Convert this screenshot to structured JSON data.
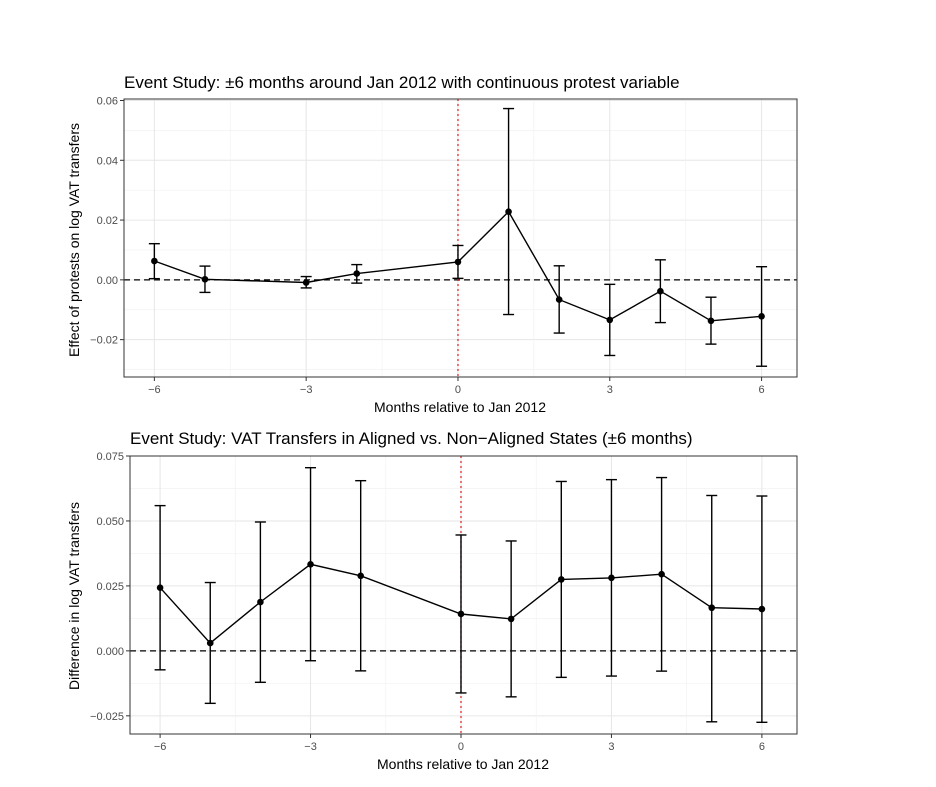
{
  "chart_data": [
    {
      "type": "line",
      "title": "Event Study: ±6 months around Jan 2012 with continuous protest variable",
      "xlabel": "Months relative to Jan 2012",
      "ylabel": "Effect of protests on log VAT transfers",
      "xlim": [
        -6.6,
        6.7
      ],
      "ylim": [
        -0.0325,
        0.0605
      ],
      "x_ticks": [
        -6,
        -3,
        0,
        3,
        6
      ],
      "x_tick_labels": [
        "−6",
        "−3",
        "0",
        "3",
        "6"
      ],
      "y_ticks": [
        -0.02,
        0.0,
        0.02,
        0.04,
        0.06
      ],
      "y_tick_labels": [
        "−0.02",
        "0.00",
        "0.02",
        "0.04",
        "0.06"
      ],
      "grid": true,
      "reference_hline": 0,
      "reference_vline": 0,
      "series": [
        {
          "x": [
            -6,
            -5,
            -3,
            -2,
            0,
            1,
            2,
            3,
            4,
            5,
            6
          ],
          "y": [
            0.0063,
            0.0002,
            -0.0009,
            0.0021,
            0.006,
            0.0228,
            -0.0066,
            -0.0134,
            -0.0038,
            -0.0137,
            -0.0122
          ],
          "ci_low": [
            0.0004,
            -0.0042,
            -0.0027,
            -0.0011,
            0.0005,
            -0.0116,
            -0.0178,
            -0.0253,
            -0.0143,
            -0.0215,
            -0.0289
          ],
          "ci_high": [
            0.0121,
            0.0046,
            0.0011,
            0.0051,
            0.0115,
            0.0573,
            0.0047,
            -0.0015,
            0.0067,
            -0.0058,
            0.0044
          ]
        }
      ]
    },
    {
      "type": "line",
      "title": "Event Study: VAT Transfers in Aligned vs. Non−Aligned States (±6 months)",
      "xlabel": "Months relative to Jan 2012",
      "ylabel": "Difference in log VAT transfers",
      "xlim": [
        -6.6,
        6.7
      ],
      "ylim": [
        -0.032,
        0.075
      ],
      "x_ticks": [
        -6,
        -3,
        0,
        3,
        6
      ],
      "x_tick_labels": [
        "−6",
        "−3",
        "0",
        "3",
        "6"
      ],
      "y_ticks": [
        -0.025,
        0.0,
        0.025,
        0.05,
        0.075
      ],
      "y_tick_labels": [
        "−0.025",
        "0.000",
        "0.025",
        "0.050",
        "0.075"
      ],
      "grid": true,
      "reference_hline": 0,
      "reference_vline": 0,
      "series": [
        {
          "x": [
            -6,
            -5,
            -4,
            -3,
            -2,
            0,
            1,
            2,
            3,
            4,
            5,
            6
          ],
          "y": [
            0.0243,
            0.003,
            0.0188,
            0.0333,
            0.0289,
            0.0142,
            0.0123,
            0.0275,
            0.0281,
            0.0295,
            0.0166,
            0.0161
          ],
          "ci_low": [
            -0.0073,
            -0.0202,
            -0.0121,
            -0.0038,
            -0.0077,
            -0.0162,
            -0.0177,
            -0.0102,
            -0.0097,
            -0.0078,
            -0.0273,
            -0.0275
          ],
          "ci_high": [
            0.0559,
            0.0263,
            0.0496,
            0.0705,
            0.0655,
            0.0446,
            0.0423,
            0.0652,
            0.0659,
            0.0667,
            0.0598,
            0.0596
          ]
        }
      ]
    }
  ]
}
